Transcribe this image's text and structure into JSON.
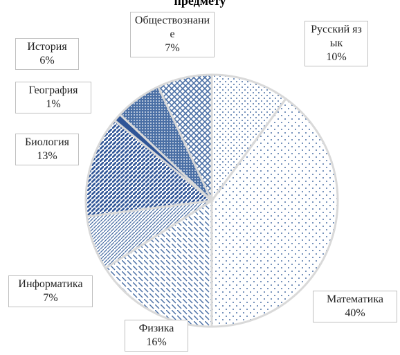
{
  "chart_data": {
    "type": "pie",
    "title": "предмету",
    "categories": [
      "Русский язык",
      "Математика",
      "Физика",
      "Информатика",
      "Биология",
      "География",
      "История",
      "Обществознание"
    ],
    "values": [
      10,
      40,
      16,
      7,
      13,
      1,
      6,
      7
    ],
    "value_labels": [
      "10%",
      "40%",
      "16%",
      "7%",
      "13%",
      "1%",
      "6%",
      "7%"
    ],
    "colors": [
      "#4a6fa5",
      "#4a6fa5",
      "#4a6fa5",
      "#4a6fa5",
      "#2f5597",
      "#2f5597",
      "#4a6fa5",
      "#4a6fa5"
    ]
  }
}
